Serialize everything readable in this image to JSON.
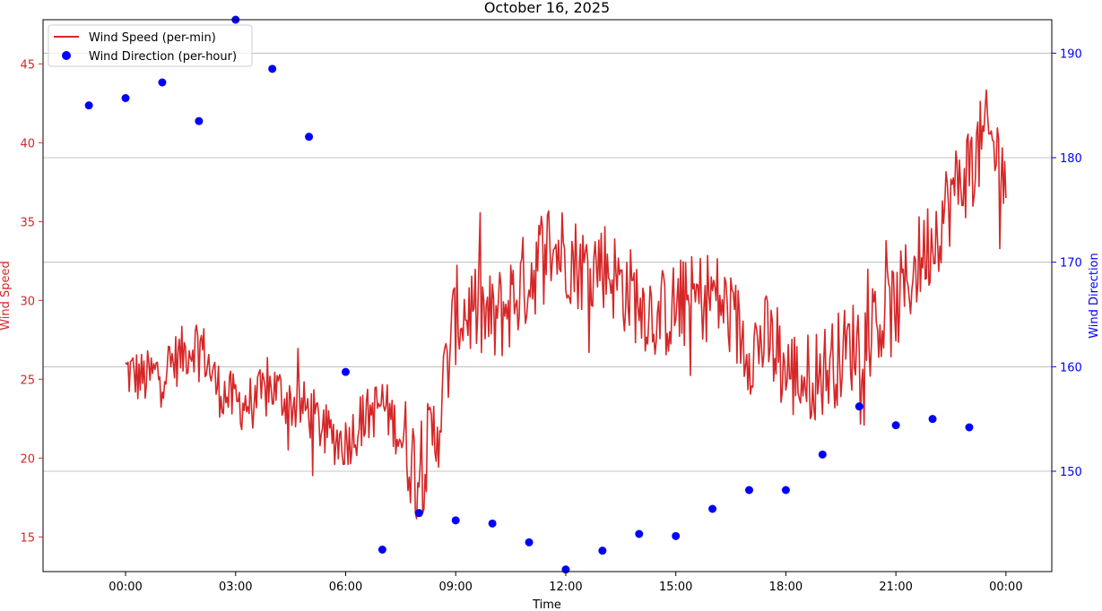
{
  "chart_data": {
    "type": "line",
    "title": "October 16, 2025",
    "xlabel": "Time",
    "ylabel_left": "Wind Speed",
    "ylabel_right": "Wind Direction",
    "x_ticks": [
      "00:00",
      "03:00",
      "06:00",
      "09:00",
      "12:00",
      "15:00",
      "18:00",
      "21:00",
      "00:00"
    ],
    "x_range_hours": [
      -2.25,
      25.25
    ],
    "y_left_ticks": [
      15,
      20,
      25,
      30,
      35,
      40,
      45
    ],
    "y_left_range": [
      12.8,
      47.8
    ],
    "y_right_ticks": [
      150,
      160,
      170,
      180,
      190
    ],
    "y_right_range": [
      140.4,
      193.2
    ],
    "grid": "horizontal (right axis)",
    "legend_position": "top-left",
    "colors": {
      "speed": "#d62728",
      "direction": "#0000ff",
      "right_axis": "#0000ff",
      "left_axis": "#d62728"
    },
    "series": [
      {
        "name": "Wind Speed (per-min)",
        "axis": "left",
        "style": "line",
        "hours": [
          0,
          0.5,
          1,
          1.5,
          2,
          2.5,
          3,
          3.5,
          4,
          4.5,
          5,
          5.5,
          6,
          6.5,
          7,
          7.5,
          8,
          8.5,
          9,
          9.5,
          10,
          10.5,
          11,
          11.5,
          12,
          12.5,
          13,
          13.5,
          14,
          14.5,
          15,
          15.5,
          16,
          16.5,
          17,
          17.5,
          18,
          18.5,
          19,
          19.5,
          20,
          20.5,
          21,
          21.5,
          22,
          22.5,
          23,
          23.5,
          24
        ],
        "values": [
          25.5,
          25.0,
          25.5,
          26.5,
          27.5,
          24.5,
          23.5,
          23.5,
          24.5,
          23.5,
          23.0,
          21.5,
          21.0,
          22.5,
          23.5,
          21.5,
          19.0,
          22.0,
          29.0,
          29.5,
          28.5,
          30.0,
          31.5,
          33.5,
          33.0,
          32.0,
          32.5,
          31.0,
          30.0,
          29.0,
          29.5,
          30.0,
          30.5,
          29.0,
          27.0,
          27.5,
          25.5,
          25.0,
          25.5,
          26.5,
          27.5,
          28.5,
          29.5,
          32.0,
          34.0,
          36.5,
          38.5,
          40.5,
          38.0
        ]
      },
      {
        "name": "Wind Direction (per-hour)",
        "axis": "right",
        "style": "markers",
        "hours": [
          -1,
          0,
          1,
          2,
          3,
          4,
          5,
          6,
          7,
          8,
          9,
          10,
          11,
          12,
          13,
          14,
          15,
          16,
          17,
          18,
          19,
          20,
          21,
          22,
          23
        ],
        "values": [
          185.0,
          185.7,
          187.2,
          183.5,
          193.2,
          188.5,
          182.0,
          159.5,
          142.5,
          146.0,
          145.3,
          145.0,
          143.2,
          140.6,
          142.4,
          144.0,
          143.8,
          146.4,
          148.2,
          148.2,
          151.6,
          156.2,
          154.4,
          155.0,
          154.2
        ]
      }
    ]
  }
}
